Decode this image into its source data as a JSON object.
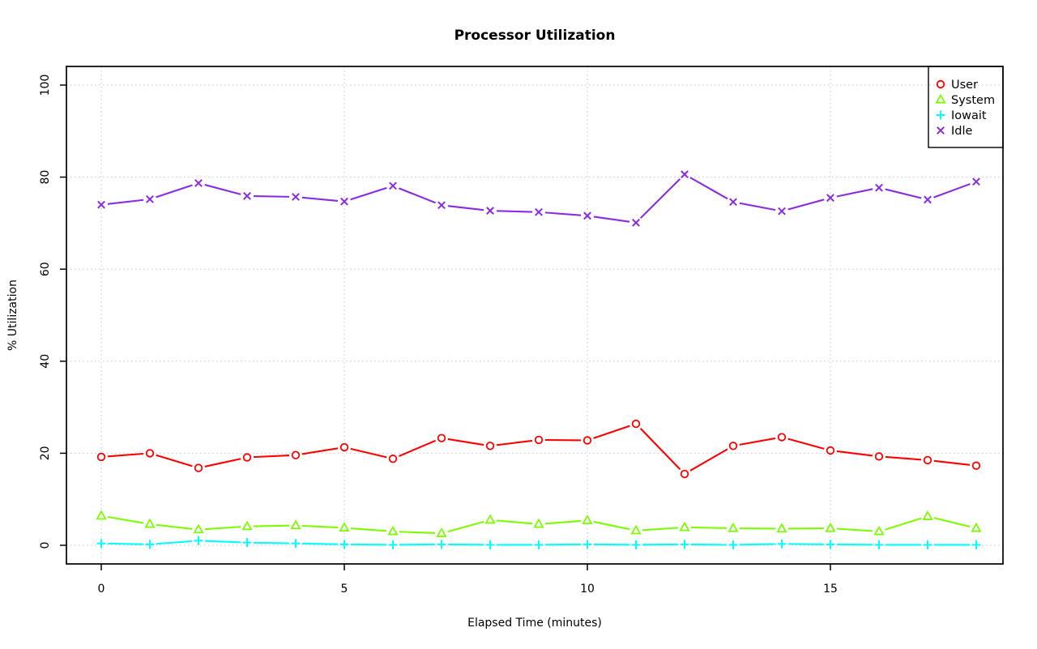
{
  "chart_data": {
    "type": "line",
    "title": "Processor Utilization",
    "xlabel": "Elapsed Time (minutes)",
    "ylabel": "% Utilization",
    "xlim": [
      0,
      18
    ],
    "ylim": [
      0,
      100
    ],
    "x_ticks": [
      0,
      5,
      10,
      15
    ],
    "y_ticks": [
      0,
      20,
      40,
      60,
      80,
      100
    ],
    "grid": "dotted",
    "legend_position": "top-right",
    "x": [
      0,
      1,
      2,
      3,
      4,
      5,
      6,
      7,
      8,
      9,
      10,
      11,
      12,
      13,
      14,
      15,
      16,
      17,
      18
    ],
    "series": [
      {
        "name": "User",
        "color": "#FF0000",
        "marker": "circle-open",
        "values": [
          19.2,
          20.0,
          16.8,
          19.1,
          19.6,
          21.3,
          18.8,
          23.3,
          21.6,
          22.9,
          22.8,
          26.4,
          15.5,
          21.6,
          23.5,
          20.6,
          19.3,
          18.5,
          17.3
        ]
      },
      {
        "name": "System",
        "color": "#7CFC00",
        "marker": "triangle-open",
        "values": [
          6.4,
          4.6,
          3.4,
          4.1,
          4.3,
          3.8,
          3.0,
          2.6,
          5.5,
          4.6,
          5.4,
          3.2,
          3.9,
          3.7,
          3.6,
          3.7,
          3.0,
          6.3,
          3.7
        ]
      },
      {
        "name": "Iowait",
        "color": "#00FFFF",
        "marker": "plus",
        "values": [
          0.4,
          0.2,
          1.0,
          0.6,
          0.4,
          0.2,
          0.1,
          0.2,
          0.1,
          0.1,
          0.2,
          0.1,
          0.2,
          0.1,
          0.3,
          0.2,
          0.1,
          0.1,
          0.1
        ]
      },
      {
        "name": "Idle",
        "color": "#8A2BE2",
        "marker": "x",
        "values": [
          74.0,
          75.2,
          78.7,
          75.9,
          75.7,
          74.7,
          78.1,
          73.9,
          72.7,
          72.4,
          71.6,
          70.1,
          80.6,
          74.6,
          72.6,
          75.5,
          77.7,
          75.1,
          79.0
        ]
      }
    ]
  },
  "colors": {
    "grid": "#C9C9C9",
    "axis": "#000000",
    "text": "#000000",
    "background": "#FFFFFF"
  }
}
